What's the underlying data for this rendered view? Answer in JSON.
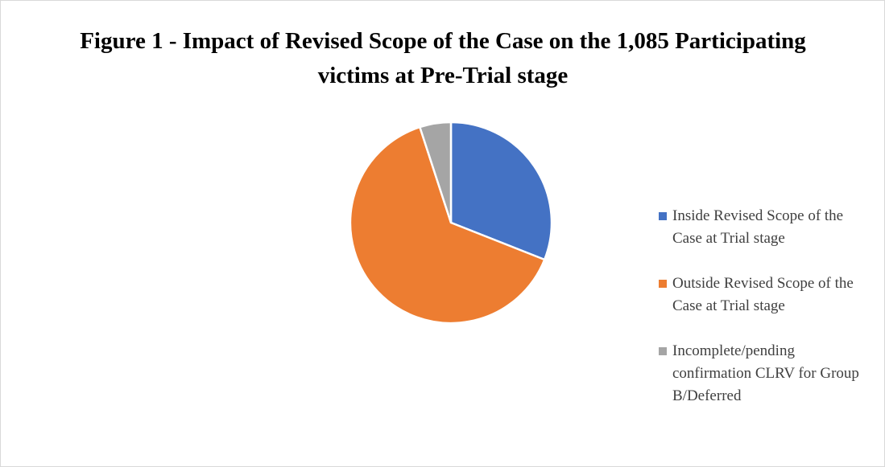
{
  "chart_data": {
    "type": "pie",
    "title": "Figure 1 - Impact of Revised Scope of the Case on the 1,085 Participating victims at Pre-Trial stage",
    "categories": [
      "Inside Revised Scope of the Case at Trial stage",
      "Outside Revised Scope of the Case at Trial stage",
      "Incomplete/pending confirmation CLRV for Group B/Deferred"
    ],
    "values": [
      31,
      64,
      5
    ],
    "colors": [
      "#4472c4",
      "#ed7d31",
      "#a5a5a5"
    ],
    "legend": "right"
  }
}
